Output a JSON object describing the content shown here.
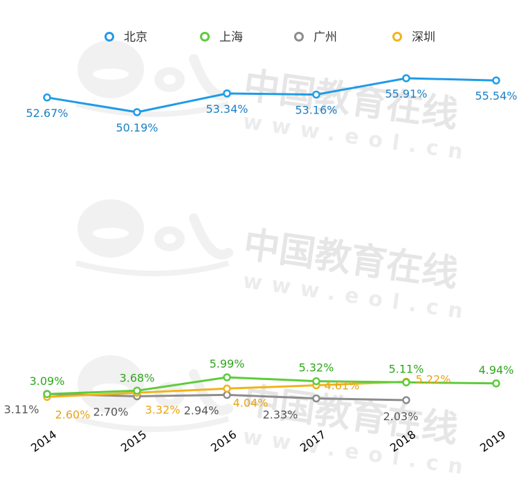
{
  "chart_data": {
    "type": "line",
    "x": [
      "2014",
      "2015",
      "2016",
      "2017",
      "2018",
      "2019"
    ],
    "series": [
      {
        "name": "北京",
        "color": "#1e9be8",
        "label_color": "#1a7fc4",
        "values": [
          52.67,
          50.19,
          53.34,
          53.16,
          55.91,
          55.54
        ],
        "labels": [
          "52.67%",
          "50.19%",
          "53.34%",
          "53.16%",
          "55.91%",
          "55.54%"
        ]
      },
      {
        "name": "上海",
        "color": "#5ccc3b",
        "label_color": "#2fa51c",
        "values": [
          3.09,
          3.68,
          5.99,
          5.32,
          5.11,
          4.94
        ],
        "labels": [
          "3.09%",
          "3.68%",
          "5.99%",
          "5.32%",
          "5.11%",
          "4.94%"
        ]
      },
      {
        "name": "广州",
        "color": "#8c8c8c",
        "label_color": "#555555",
        "values": [
          3.11,
          2.7,
          2.94,
          2.33,
          2.03,
          null
        ],
        "labels": [
          "3.11%",
          "2.70%",
          "2.94%",
          "2.33%",
          "2.03%",
          null
        ]
      },
      {
        "name": "深圳",
        "color": "#f2b31a",
        "label_color": "#e8a412",
        "values": [
          2.6,
          3.32,
          4.04,
          4.61,
          5.22,
          null
        ],
        "labels": [
          "2.60%",
          "3.32%",
          "4.04%",
          "4.61%",
          "5.22%",
          null
        ]
      }
    ],
    "legend_position": "top",
    "grid": false,
    "y_axis_visible": false
  },
  "watermark": {
    "text": "中国教育在线",
    "url": "www.eol.cn",
    "logo": "eol"
  }
}
